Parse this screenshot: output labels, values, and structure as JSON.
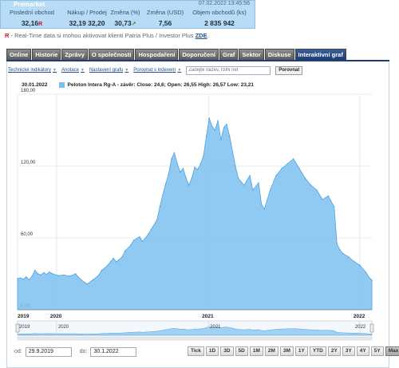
{
  "quote": {
    "status_label": "Premarket",
    "timestamp": "07.02.2022 13:45:56",
    "headers": [
      "Poslední obchod",
      "Nákup / Prodej",
      "Změna (%)",
      "Změna (USD)",
      "Objem obchodů (ks)"
    ],
    "last_trade": "32,16",
    "last_trade_flag": "R",
    "bid_ask": "32,19 32,20",
    "change_pct": "30,73",
    "change_pct_arrow": "↗",
    "change_usd": "7,56",
    "volume": "2 835 942"
  },
  "realtime_note": {
    "flag": "R",
    "text": " - Real-Time data si mohou aktivovat klienti Patria Plus / Investor Plus ",
    "link": "ZDE"
  },
  "tabs": [
    {
      "label": "Online",
      "active": false
    },
    {
      "label": "Historie",
      "active": false
    },
    {
      "label": "Zprávy",
      "active": false
    },
    {
      "label": "O společnosti",
      "active": false
    },
    {
      "label": "Hospodaření",
      "active": false
    },
    {
      "label": "Doporučení",
      "active": false
    },
    {
      "label": "Graf",
      "active": false
    },
    {
      "label": "Sektor",
      "active": false
    },
    {
      "label": "Diskuse",
      "active": false
    },
    {
      "label": "Interaktivní graf",
      "active": true
    }
  ],
  "toolbar": {
    "links": [
      "Technické indikátory",
      "Anotace",
      "Nastavení grafu",
      "Porovnat s indexem"
    ],
    "search_placeholder": "Zadejte název, ISIN net",
    "compare_label": "Porovnat"
  },
  "legend": {
    "date": "30.01.2022",
    "series_text": "Peloton Intera Rg-A - závěr: Close: 24,6; Open: 26,55 High: 26,57 Low: 23,21",
    "color": "#7cc0f0"
  },
  "chart_data": {
    "type": "area",
    "series": [
      {
        "name": "Peloton Intera Rg-A",
        "color": "#7cc0f0",
        "points": [
          [
            "2019-09-29",
            26.0
          ],
          [
            "2019-10-06",
            26.5
          ],
          [
            "2019-10-13",
            25.5
          ],
          [
            "2019-10-20",
            27.5
          ],
          [
            "2019-10-27",
            25.0
          ],
          [
            "2019-11-03",
            28.0
          ],
          [
            "2019-11-10",
            33.0
          ],
          [
            "2019-11-17",
            30.0
          ],
          [
            "2019-11-24",
            29.0
          ],
          [
            "2019-12-01",
            31.0
          ],
          [
            "2019-12-08",
            29.5
          ],
          [
            "2019-12-15",
            31.5
          ],
          [
            "2019-12-22",
            30.0
          ],
          [
            "2020-01-05",
            28.5
          ],
          [
            "2020-01-19",
            29.0
          ],
          [
            "2020-02-02",
            28.0
          ],
          [
            "2020-02-16",
            30.0
          ],
          [
            "2020-02-23",
            27.0
          ],
          [
            "2020-03-08",
            23.0
          ],
          [
            "2020-03-15",
            21.5
          ],
          [
            "2020-03-29",
            25.0
          ],
          [
            "2020-04-12",
            29.0
          ],
          [
            "2020-04-19",
            33.0
          ],
          [
            "2020-05-03",
            37.0
          ],
          [
            "2020-05-10",
            40.0
          ],
          [
            "2020-05-17",
            43.0
          ],
          [
            "2020-05-24",
            40.0
          ],
          [
            "2020-06-07",
            44.0
          ],
          [
            "2020-06-14",
            49.0
          ],
          [
            "2020-06-28",
            54.0
          ],
          [
            "2020-07-05",
            58.0
          ],
          [
            "2020-07-19",
            61.0
          ],
          [
            "2020-07-26",
            57.0
          ],
          [
            "2020-08-09",
            63.0
          ],
          [
            "2020-08-16",
            67.0
          ],
          [
            "2020-08-30",
            75.0
          ],
          [
            "2020-09-06",
            86.0
          ],
          [
            "2020-09-13",
            96.0
          ],
          [
            "2020-09-20",
            105.0
          ],
          [
            "2020-09-27",
            113.0
          ],
          [
            "2020-10-04",
            126.0
          ],
          [
            "2020-10-11",
            131.0
          ],
          [
            "2020-10-18",
            122.0
          ],
          [
            "2020-10-25",
            115.0
          ],
          [
            "2020-11-01",
            118.0
          ],
          [
            "2020-11-08",
            110.0
          ],
          [
            "2020-11-15",
            104.0
          ],
          [
            "2020-11-22",
            110.0
          ],
          [
            "2020-11-29",
            119.0
          ],
          [
            "2020-12-06",
            117.0
          ],
          [
            "2020-12-13",
            122.0
          ],
          [
            "2020-12-20",
            128.0
          ],
          [
            "2020-12-27",
            145.0
          ],
          [
            "2021-01-03",
            160.0
          ],
          [
            "2021-01-10",
            153.0
          ],
          [
            "2021-01-17",
            150.0
          ],
          [
            "2021-01-24",
            158.0
          ],
          [
            "2021-01-31",
            142.0
          ],
          [
            "2021-02-07",
            152.0
          ],
          [
            "2021-02-14",
            155.0
          ],
          [
            "2021-02-21",
            145.0
          ],
          [
            "2021-03-07",
            120.0
          ],
          [
            "2021-03-14",
            110.0
          ],
          [
            "2021-03-28",
            104.0
          ],
          [
            "2021-04-11",
            112.0
          ],
          [
            "2021-04-18",
            100.0
          ],
          [
            "2021-05-02",
            106.0
          ],
          [
            "2021-05-09",
            88.0
          ],
          [
            "2021-05-16",
            84.0
          ],
          [
            "2021-05-30",
            100.0
          ],
          [
            "2021-06-13",
            112.0
          ],
          [
            "2021-06-27",
            118.0
          ],
          [
            "2021-07-11",
            122.0
          ],
          [
            "2021-07-25",
            126.0
          ],
          [
            "2021-08-08",
            118.0
          ],
          [
            "2021-08-22",
            110.0
          ],
          [
            "2021-09-05",
            104.0
          ],
          [
            "2021-09-19",
            100.0
          ],
          [
            "2021-10-03",
            92.0
          ],
          [
            "2021-10-17",
            95.0
          ],
          [
            "2021-10-31",
            86.0
          ],
          [
            "2021-11-07",
            55.0
          ],
          [
            "2021-11-14",
            50.0
          ],
          [
            "2021-11-21",
            47.0
          ],
          [
            "2021-12-05",
            44.0
          ],
          [
            "2021-12-19",
            40.0
          ],
          [
            "2022-01-02",
            37.0
          ],
          [
            "2022-01-16",
            31.0
          ],
          [
            "2022-01-23",
            27.0
          ],
          [
            "2022-01-30",
            24.6
          ]
        ]
      }
    ],
    "ylim": [
      0,
      180
    ],
    "y_ticks": [
      {
        "value": 180,
        "label": "180,00"
      },
      {
        "value": 120,
        "label": "120,00"
      },
      {
        "value": 60,
        "label": "60,00"
      },
      {
        "value": 0,
        "label": "0,00"
      }
    ],
    "x_ticks": [
      "2019",
      "2020",
      "2021",
      "2022"
    ],
    "navigator_labels": [
      "2019",
      "2020",
      "2021",
      "2022"
    ],
    "grid": true,
    "xlabel": "",
    "ylabel": ""
  },
  "range": {
    "from_label": "od:",
    "from_value": "29.9.2019",
    "to_label": "do:",
    "to_value": "30.1.2022"
  },
  "zoom_buttons": [
    {
      "label": "Tick",
      "active": false
    },
    {
      "label": "1D",
      "active": false
    },
    {
      "label": "3D",
      "active": false
    },
    {
      "label": "5D",
      "active": false
    },
    {
      "label": "1M",
      "active": false
    },
    {
      "label": "2M",
      "active": false
    },
    {
      "label": "3M",
      "active": false
    },
    {
      "label": "1Y",
      "active": false
    },
    {
      "label": "YTD",
      "active": false
    },
    {
      "label": "2Y",
      "active": false
    },
    {
      "label": "3Y",
      "active": false
    },
    {
      "label": "4Y",
      "active": false
    },
    {
      "label": "5Y",
      "active": false
    },
    {
      "label": "Max",
      "active": true
    }
  ]
}
